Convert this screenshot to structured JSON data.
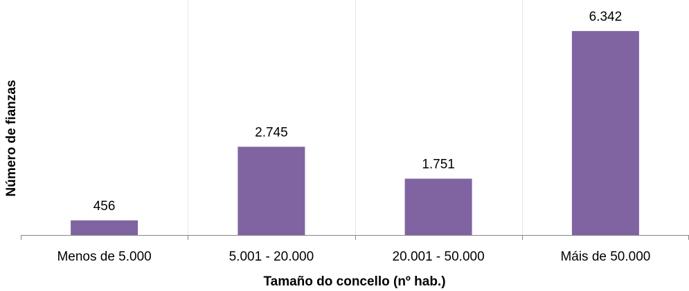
{
  "chart_data": {
    "type": "bar",
    "categories": [
      "Menos de 5.000",
      "5.001 - 20.000",
      "20.001 - 50.000",
      "Máis de 50.000"
    ],
    "values": [
      456,
      2745,
      1751,
      6342
    ],
    "value_labels": [
      "456",
      "2.745",
      "1.751",
      "6.342"
    ],
    "xlabel": "Tamaño do concello (nº hab.)",
    "ylabel": "Número de fianzas",
    "ylim": [
      0,
      7000
    ],
    "bar_color": "#8064a2",
    "grid": "vertical separators only",
    "legend": "none"
  }
}
